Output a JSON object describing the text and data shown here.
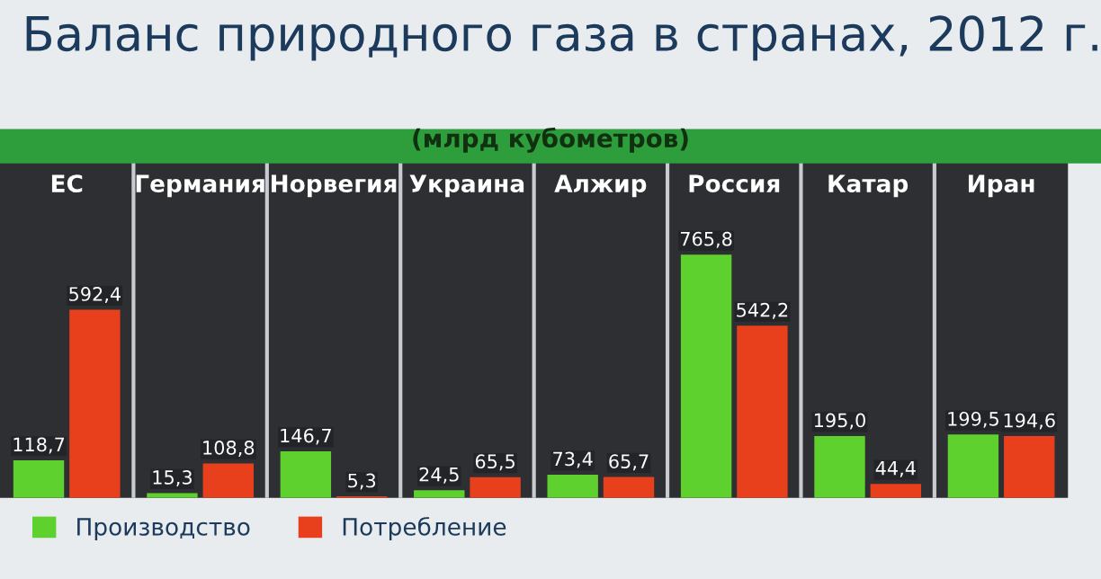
{
  "chart_data": {
    "type": "bar",
    "title": "Баланс природного газа в странах, 2012 г.",
    "subtitle": "(млрд кубометров)",
    "categories": [
      "ЕС",
      "Германия",
      "Норвегия",
      "Украина",
      "Алжир",
      "Россия",
      "Катар",
      "Иран"
    ],
    "series": [
      {
        "name": "Производство",
        "color": "#5fd12e",
        "values": [
          118.7,
          15.3,
          146.7,
          24.5,
          73.4,
          765.8,
          195.0,
          199.5
        ],
        "value_labels": [
          "118,7",
          "15,3",
          "146,7",
          "24,5",
          "73,4",
          "765,8",
          "195,0",
          "199,5"
        ]
      },
      {
        "name": "Потребление",
        "color": "#e8401c",
        "values": [
          592.4,
          108.8,
          5.3,
          65.5,
          65.7,
          542.2,
          44.4,
          194.6
        ],
        "value_labels": [
          "592,4",
          "108,8",
          "5,3",
          "65,5",
          "65,7",
          "542,2",
          "44,4",
          "194,6"
        ]
      }
    ],
    "legend": "bottom left",
    "grid": false
  }
}
